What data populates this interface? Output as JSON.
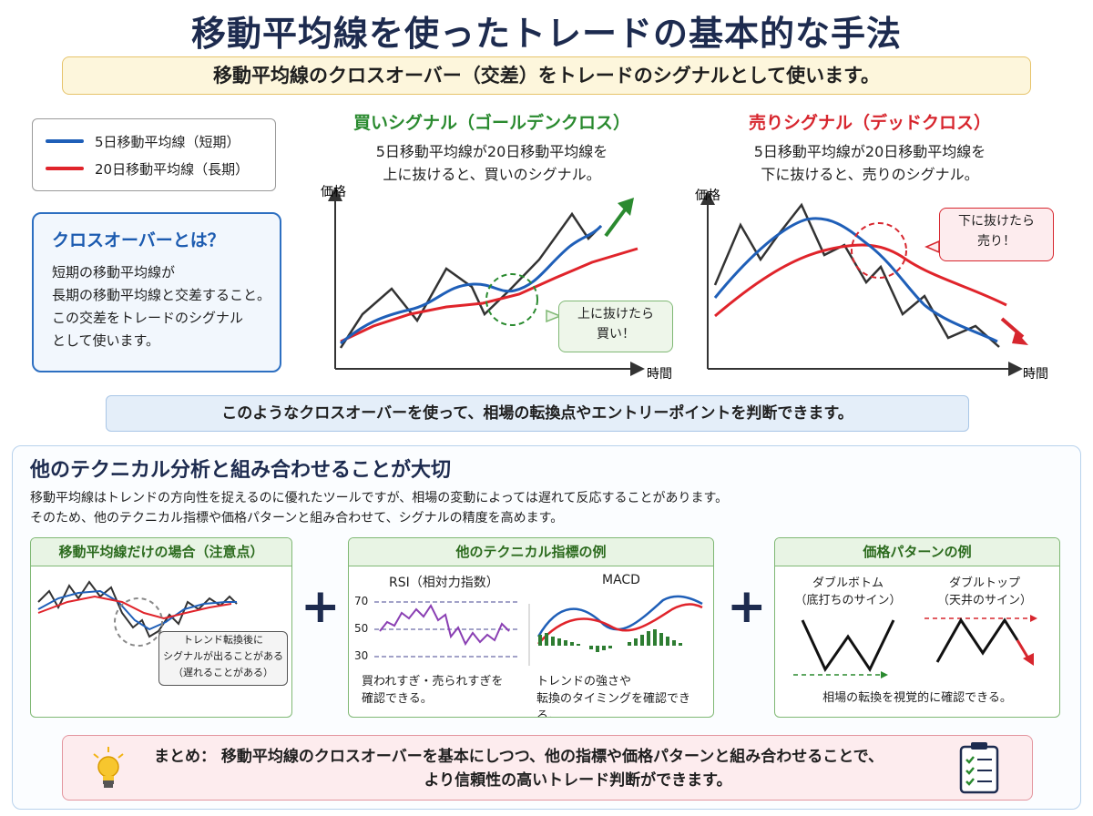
{
  "title": "移動平均線を使ったトレードの基本的な手法",
  "subtitle": "移動平均線のクロスオーバー（交差）をトレードのシグナルとして使います。",
  "legend": {
    "short_label": "5日移動平均線（短期）",
    "long_label": "20日移動平均線（長期）"
  },
  "crossover_box": {
    "heading": "クロスオーバーとは？",
    "lines": [
      "短期の移動平均線が",
      "長期の移動平均線と交差すること。",
      "この交差をトレードのシグナル",
      "として使います。"
    ]
  },
  "golden_cross": {
    "title": "買いシグナル（ゴールデンクロス）",
    "desc_lines": [
      "5日移動平均線が20日移動平均線を",
      "上に抜けると、買いのシグナル。"
    ],
    "y_axis": "価格",
    "x_axis": "時間",
    "bubble_lines": [
      "上に抜けたら",
      "買い！"
    ]
  },
  "dead_cross": {
    "title": "売りシグナル（デッドクロス）",
    "desc_lines": [
      "5日移動平均線が20日移動平均線を",
      "下に抜けると、売りのシグナル。"
    ],
    "y_axis": "価格",
    "x_axis": "時間",
    "bubble_lines": [
      "下に抜けたら",
      "売り！"
    ]
  },
  "info_bar": "このようなクロスオーバーを使って、相場の転換点やエントリーポイントを判断できます。",
  "section": {
    "title": "他のテクニカル分析と組み合わせることが大切",
    "desc_lines": [
      "移動平均線はトレンドの方向性を捉えるのに優れたツールですが、相場の変動によっては遅れて反応することがあります。",
      "そのため、他のテクニカル指標や価格パターンと組み合わせて、シグナルの精度を高めます。"
    ]
  },
  "panel_ma": {
    "heading": "移動平均線だけの場合（注意点）",
    "bubble_lines": [
      "トレンド転換後に",
      "シグナルが出ることがある",
      "（遅れることがある）"
    ]
  },
  "panel_indicators": {
    "heading": "他のテクニカル指標の例",
    "rsi_label": "RSI（相対力指数）",
    "rsi_ticks": [
      "70",
      "50",
      "30"
    ],
    "rsi_caption_lines": [
      "買われすぎ・売られすぎを",
      "確認できる。"
    ],
    "macd_label": "MACD",
    "macd_caption_lines": [
      "トレンドの強さや",
      "転換のタイミングを確認できる。"
    ]
  },
  "panel_patterns": {
    "heading": "価格パターンの例",
    "double_bottom_lines": [
      "ダブルボトム",
      "（底打ちのサイン）"
    ],
    "double_top_lines": [
      "ダブルトップ",
      "（天井のサイン）"
    ],
    "caption": "相場の転換を視覚的に確認できる。"
  },
  "summary": {
    "line1": "まとめ：  移動平均線のクロスオーバーを基本にしつつ、他の指標や価格パターンと組み合わせることで、",
    "line2": "より信頼性の高いトレード判断ができます。"
  },
  "colors": {
    "short_ma": "#1f5fb8",
    "long_ma": "#e0242b",
    "price": "#333333",
    "buy": "#2a8a2f",
    "sell": "#d7262e"
  },
  "icons": [
    "lightbulb-icon",
    "checklist-icon",
    "plus-icon",
    "arrow-up-icon",
    "arrow-down-icon"
  ]
}
